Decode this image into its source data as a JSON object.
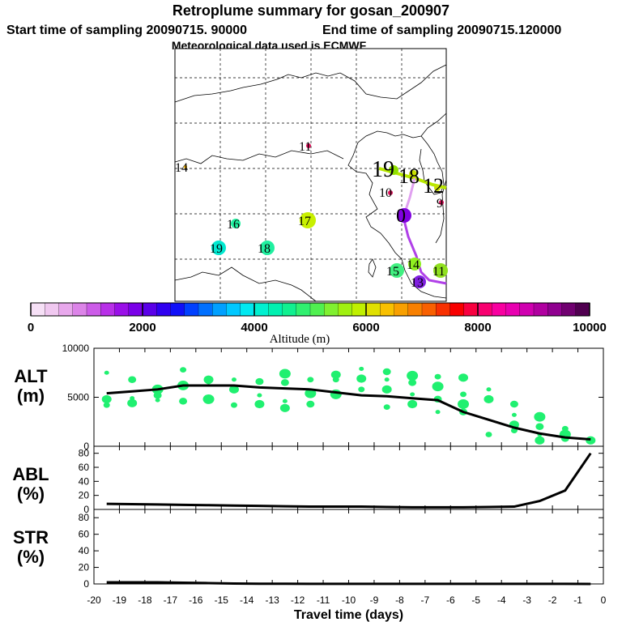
{
  "header": {
    "title": "Retroplume summary for gosan_200907",
    "start_label": "Start time of sampling 20090715. 90000",
    "end_label": "End time of sampling 20090715.120000",
    "met_label": "Meteorological data used is ECMWF"
  },
  "colorbar": {
    "title": "Altitude (m)",
    "ticks": [
      "0",
      "2000",
      "4000",
      "6000",
      "8000",
      "10000"
    ],
    "colors": [
      "#f6e0f6",
      "#f0c8f0",
      "#e8a8ec",
      "#dc84e8",
      "#cc5ce8",
      "#b830e8",
      "#9a10e8",
      "#7a00e8",
      "#5a00e8",
      "#3000f0",
      "#1010f8",
      "#0040ff",
      "#0070ff",
      "#00a0ff",
      "#00c8ff",
      "#00e8f0",
      "#00f0d0",
      "#00f0b0",
      "#10f090",
      "#30f070",
      "#50f050",
      "#80f030",
      "#a0f010",
      "#c0f000",
      "#e0e000",
      "#f8c000",
      "#f8a000",
      "#f88000",
      "#f86000",
      "#f83000",
      "#f80000",
      "#f80040",
      "#f80070",
      "#f800a0",
      "#e800b0",
      "#d000b0",
      "#b000a0",
      "#900090",
      "#700070",
      "#500050"
    ]
  },
  "map_labels": [
    {
      "text": "11",
      "color": "#e0105a"
    },
    {
      "text": "14",
      "color": "#f0b000"
    },
    {
      "text": "19",
      "color": "#90e000"
    },
    {
      "text": "18",
      "color": "#c8e000"
    },
    {
      "text": "12",
      "color": "#c8e000"
    },
    {
      "text": "10",
      "color": "#e0105a"
    },
    {
      "text": "9",
      "color": "#e0105a"
    },
    {
      "text": "16",
      "color": "#20f0a0"
    },
    {
      "text": "17",
      "color": "#c8f000"
    },
    {
      "text": "0",
      "color": "#8000e0"
    },
    {
      "text": "19",
      "color": "#00e8d0"
    },
    {
      "text": "18",
      "color": "#20f0a0"
    },
    {
      "text": "15",
      "color": "#40f080"
    },
    {
      "text": "14",
      "color": "#90f020"
    },
    {
      "text": "13",
      "color": "#8020e0"
    },
    {
      "text": "11",
      "color": "#90e020"
    }
  ],
  "chart_data": [
    {
      "type": "line",
      "panel": "ALT",
      "ylabel": "ALT (m)",
      "ylim": [
        0,
        10000
      ],
      "yticks": [
        "0",
        "5000",
        "10000"
      ],
      "x": [
        -19.5,
        -18.5,
        -17.5,
        -16.5,
        -15.5,
        -14.5,
        -13.5,
        -12.5,
        -11.5,
        -10.5,
        -9.5,
        -8.5,
        -7.5,
        -6.5,
        -5.5,
        -4.5,
        -3.5,
        -2.5,
        -1.5,
        -0.5
      ],
      "values": [
        5400,
        5600,
        5800,
        6200,
        6200,
        6200,
        6000,
        5900,
        5800,
        5500,
        5200,
        5100,
        4900,
        4700,
        3500,
        2700,
        1900,
        1300,
        900,
        700
      ],
      "clusters": [
        {
          "x": -19.5,
          "y": [
            7500,
            4800,
            4200
          ]
        },
        {
          "x": -18.5,
          "y": [
            6800,
            4900,
            4400
          ]
        },
        {
          "x": -17.5,
          "y": [
            5800,
            5200,
            4700
          ]
        },
        {
          "x": -16.5,
          "y": [
            7800,
            6200,
            4600
          ]
        },
        {
          "x": -15.5,
          "y": [
            6800,
            6600,
            4800
          ]
        },
        {
          "x": -14.5,
          "y": [
            6800,
            5800,
            4200
          ]
        },
        {
          "x": -13.5,
          "y": [
            6600,
            5200,
            4300
          ]
        },
        {
          "x": -12.5,
          "y": [
            7400,
            6500,
            4600,
            3900
          ]
        },
        {
          "x": -11.5,
          "y": [
            6800,
            5400,
            4300
          ]
        },
        {
          "x": -10.5,
          "y": [
            7300,
            6800,
            5300
          ]
        },
        {
          "x": -9.5,
          "y": [
            7900,
            6900,
            5800
          ]
        },
        {
          "x": -8.5,
          "y": [
            7600,
            6800,
            5800,
            4000
          ]
        },
        {
          "x": -7.5,
          "y": [
            7200,
            6500,
            5300,
            4300
          ]
        },
        {
          "x": -6.5,
          "y": [
            7100,
            6100,
            4800,
            3500
          ]
        },
        {
          "x": -5.5,
          "y": [
            7000,
            5300,
            4300,
            3500
          ]
        },
        {
          "x": -4.5,
          "y": [
            5800,
            4800,
            1200
          ]
        },
        {
          "x": -3.5,
          "y": [
            4300,
            3200,
            2200,
            1600
          ]
        },
        {
          "x": -2.5,
          "y": [
            3000,
            2000,
            1200,
            600
          ]
        },
        {
          "x": -1.5,
          "y": [
            1800,
            1200,
            800
          ]
        },
        {
          "x": -0.5,
          "y": [
            600
          ]
        }
      ]
    },
    {
      "type": "line",
      "panel": "ABL",
      "ylabel": "ABL (%)",
      "ylim": [
        0,
        90
      ],
      "yticks": [
        "0",
        "20",
        "40",
        "60",
        "80"
      ],
      "x": [
        -19.5,
        -18.5,
        -17.5,
        -16.5,
        -15.5,
        -14.5,
        -13.5,
        -12.5,
        -11.5,
        -10.5,
        -9.5,
        -8.5,
        -7.5,
        -6.5,
        -5.5,
        -4.5,
        -3.5,
        -2.5,
        -1.5,
        -0.5
      ],
      "values": [
        8,
        7.5,
        7,
        6.5,
        6,
        5.5,
        5,
        4.5,
        4,
        4,
        4,
        3.5,
        3,
        3,
        3,
        3.5,
        4,
        12,
        27,
        80
      ]
    },
    {
      "type": "line",
      "panel": "STR",
      "ylabel": "STR (%)",
      "ylim": [
        0,
        90
      ],
      "yticks": [
        "0",
        "20",
        "40",
        "60",
        "80"
      ],
      "x": [
        -19.5,
        -18.5,
        -17.5,
        -16.5,
        -15.5,
        -14.5,
        -13.5,
        -12.5,
        -11.5,
        -10.5,
        -9.5,
        -8.5,
        -7.5,
        -6.5,
        -5.5,
        -4.5,
        -3.5,
        -2.5,
        -1.5,
        -0.5
      ],
      "values": [
        2,
        2,
        2,
        1.5,
        1,
        0.5,
        0.3,
        0.2,
        0.1,
        0.1,
        0.1,
        0.1,
        0.1,
        0.1,
        0.1,
        0.1,
        0.1,
        0.1,
        0.1,
        0
      ]
    },
    {
      "type": "axis",
      "xlabel": "Travel time (days)",
      "xticks": [
        "-20",
        "-19",
        "-18",
        "-17",
        "-16",
        "-15",
        "-14",
        "-13",
        "-12",
        "-11",
        "-10",
        "-9",
        "-8",
        "-7",
        "-6",
        "-5",
        "-4",
        "-3",
        "-2",
        "-1",
        "0"
      ]
    }
  ]
}
